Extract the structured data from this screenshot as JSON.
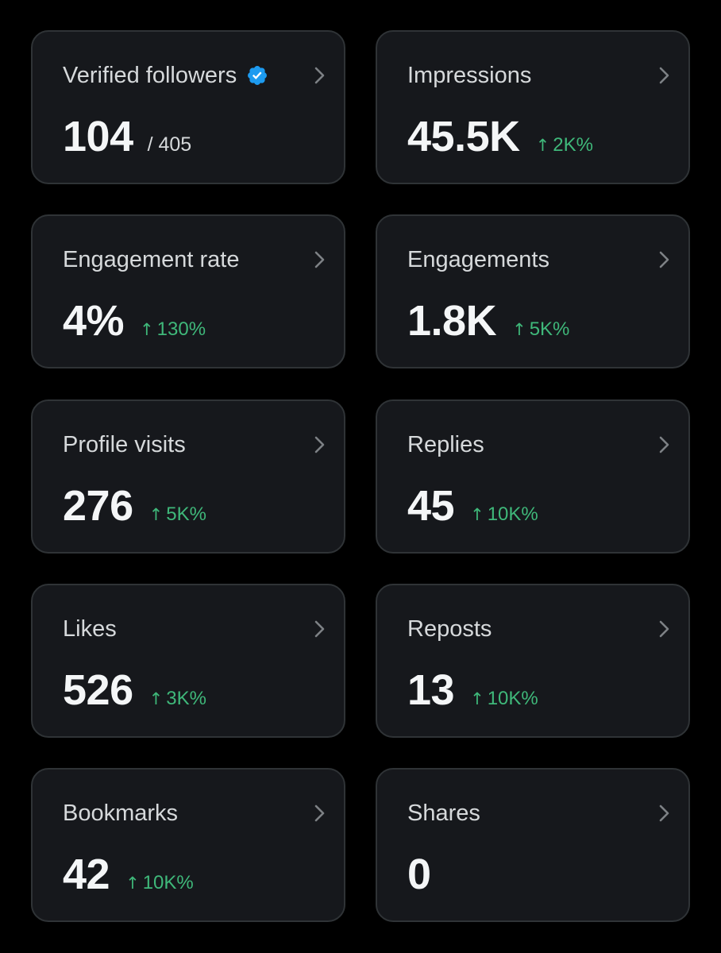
{
  "colors": {
    "background": "#000000",
    "card": "#16181c",
    "card_border": "#2f3336",
    "positive": "#3fb87a",
    "verified_badge": "#1d9bf0"
  },
  "icons": {
    "verified": "verified-badge-icon",
    "chevron": "chevron-right-icon",
    "up_arrow": "arrow-up-icon"
  },
  "metrics": {
    "verified_followers": {
      "title": "Verified followers",
      "value": "104",
      "total": "/ 405"
    },
    "impressions": {
      "title": "Impressions",
      "value": "45.5K",
      "arrow": "↑",
      "change": "2K%"
    },
    "engagement_rate": {
      "title": "Engagement rate",
      "value": "4%",
      "arrow": "↑",
      "change": "130%"
    },
    "engagements": {
      "title": "Engagements",
      "value": "1.8K",
      "arrow": "↑",
      "change": "5K%"
    },
    "profile_visits": {
      "title": "Profile visits",
      "value": "276",
      "arrow": "↑",
      "change": "5K%"
    },
    "replies": {
      "title": "Replies",
      "value": "45",
      "arrow": "↑",
      "change": "10K%"
    },
    "likes": {
      "title": "Likes",
      "value": "526",
      "arrow": "↑",
      "change": "3K%"
    },
    "reposts": {
      "title": "Reposts",
      "value": "13",
      "arrow": "↑",
      "change": "10K%"
    },
    "bookmarks": {
      "title": "Bookmarks",
      "value": "42",
      "arrow": "↑",
      "change": "10K%"
    },
    "shares": {
      "title": "Shares",
      "value": "0"
    }
  }
}
